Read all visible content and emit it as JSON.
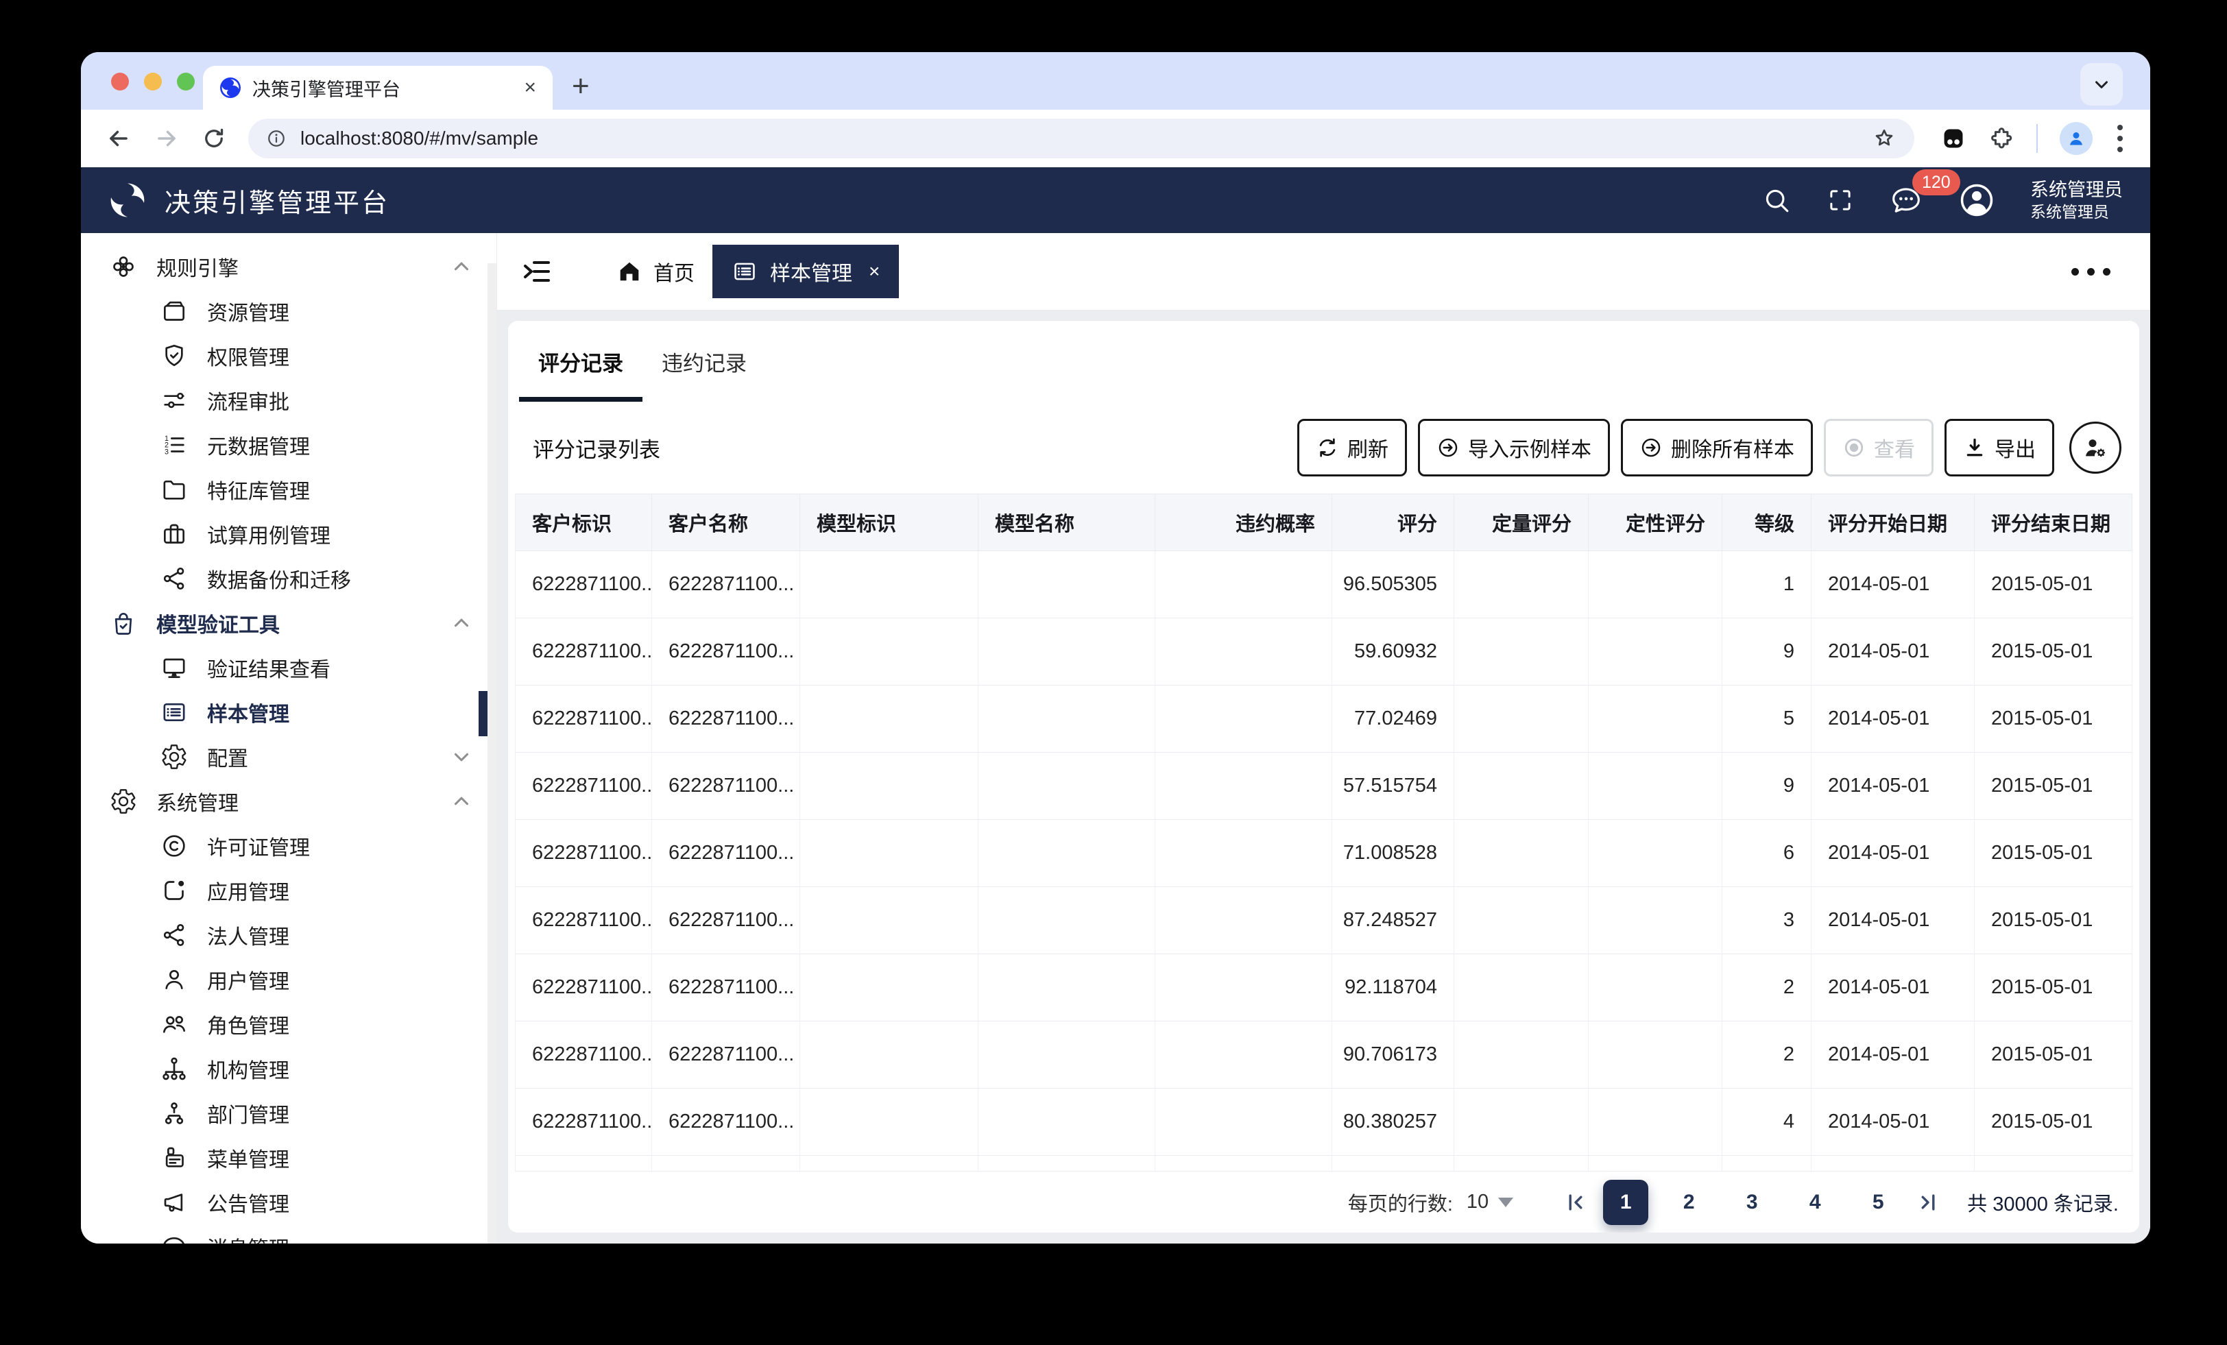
{
  "colors": {
    "navy": "#1e2b4d",
    "badge_red": "#e85a4f",
    "tabstrip_blue": "#d7e1fb",
    "content_gray": "#ecedf1",
    "table_header_bg": "#f5f6fa"
  },
  "browser": {
    "tab_title": "决策引擎管理平台",
    "url": "localhost:8080/#/mv/sample"
  },
  "appbar": {
    "title": "决策引擎管理平台",
    "badge_count": "120",
    "user_name": "系统管理员",
    "user_role": "系统管理员"
  },
  "sidebar": {
    "sections": [
      {
        "icon": "nodes-flower-icon",
        "label": "规则引擎",
        "chevron": "up",
        "active_section": false,
        "children": [
          {
            "icon": "wallet-icon",
            "label": "资源管理"
          },
          {
            "icon": "shield-check-icon",
            "label": "权限管理"
          },
          {
            "icon": "sliders-icon",
            "label": "流程审批"
          },
          {
            "icon": "list-ol-icon",
            "label": "元数据管理"
          },
          {
            "icon": "folder-icon",
            "label": "特征库管理"
          },
          {
            "icon": "briefcase-icon",
            "label": "试算用例管理"
          },
          {
            "icon": "share-nodes-icon",
            "label": "数据备份和迁移"
          }
        ]
      },
      {
        "icon": "bag-check-icon",
        "label": "模型验证工具",
        "chevron": "up",
        "active_section": true,
        "children": [
          {
            "icon": "monitor-icon",
            "label": "验证结果查看"
          },
          {
            "icon": "card-list-icon",
            "label": "样本管理",
            "active": true
          },
          {
            "icon": "gear-icon",
            "label": "配置",
            "chevron": "down"
          }
        ]
      },
      {
        "icon": "gear-icon",
        "label": "系统管理",
        "chevron": "up",
        "active_section": false,
        "children": [
          {
            "icon": "copyright-icon",
            "label": "许可证管理"
          },
          {
            "icon": "app-indicator-icon",
            "label": "应用管理"
          },
          {
            "icon": "share-nodes-icon",
            "label": "法人管理"
          },
          {
            "icon": "person-icon",
            "label": "用户管理"
          },
          {
            "icon": "people-icon",
            "label": "角色管理"
          },
          {
            "icon": "org-chart-icon",
            "label": "机构管理"
          },
          {
            "icon": "diagram-icon",
            "label": "部门管理"
          },
          {
            "icon": "menu-card-icon",
            "label": "菜单管理"
          },
          {
            "icon": "megaphone-icon",
            "label": "公告管理"
          },
          {
            "icon": "chat-dots-icon",
            "label": "消息管理"
          }
        ]
      }
    ]
  },
  "crumb": {
    "home": "首页",
    "page_tab": "样本管理",
    "close": "×"
  },
  "tabs": [
    {
      "label": "评分记录",
      "active": true
    },
    {
      "label": "违约记录",
      "active": false
    }
  ],
  "panel": {
    "list_title": "评分记录列表"
  },
  "toolbar": {
    "buttons": [
      {
        "icon": "refresh-icon",
        "label": "刷新",
        "disabled": false
      },
      {
        "icon": "arrow-right-circle-icon",
        "label": "导入示例样本",
        "disabled": false
      },
      {
        "icon": "arrow-right-circle-icon",
        "label": "删除所有样本",
        "disabled": false
      },
      {
        "icon": "bullseye-icon",
        "label": "查看",
        "disabled": true
      },
      {
        "icon": "download-icon",
        "label": "导出",
        "disabled": false
      }
    ]
  },
  "table": {
    "columns": [
      {
        "label": "客户标识",
        "align": "left"
      },
      {
        "label": "客户名称",
        "align": "left"
      },
      {
        "label": "模型标识",
        "align": "left"
      },
      {
        "label": "模型名称",
        "align": "left"
      },
      {
        "label": "违约概率",
        "align": "right"
      },
      {
        "label": "评分",
        "align": "right"
      },
      {
        "label": "定量评分",
        "align": "right"
      },
      {
        "label": "定性评分",
        "align": "right"
      },
      {
        "label": "等级",
        "align": "right"
      },
      {
        "label": "评分开始日期",
        "align": "left"
      },
      {
        "label": "评分结束日期",
        "align": "left"
      }
    ],
    "rows": [
      [
        "6222871100...",
        "6222871100...",
        "",
        "",
        "",
        "96.505305",
        "",
        "",
        "1",
        "2014-05-01",
        "2015-05-01"
      ],
      [
        "6222871100...",
        "6222871100...",
        "",
        "",
        "",
        "59.60932",
        "",
        "",
        "9",
        "2014-05-01",
        "2015-05-01"
      ],
      [
        "6222871100...",
        "6222871100...",
        "",
        "",
        "",
        "77.02469",
        "",
        "",
        "5",
        "2014-05-01",
        "2015-05-01"
      ],
      [
        "6222871100...",
        "6222871100...",
        "",
        "",
        "",
        "57.515754",
        "",
        "",
        "9",
        "2014-05-01",
        "2015-05-01"
      ],
      [
        "6222871100...",
        "6222871100...",
        "",
        "",
        "",
        "71.008528",
        "",
        "",
        "6",
        "2014-05-01",
        "2015-05-01"
      ],
      [
        "6222871100...",
        "6222871100...",
        "",
        "",
        "",
        "87.248527",
        "",
        "",
        "3",
        "2014-05-01",
        "2015-05-01"
      ],
      [
        "6222871100...",
        "6222871100...",
        "",
        "",
        "",
        "92.118704",
        "",
        "",
        "2",
        "2014-05-01",
        "2015-05-01"
      ],
      [
        "6222871100...",
        "6222871100...",
        "",
        "",
        "",
        "90.706173",
        "",
        "",
        "2",
        "2014-05-01",
        "2015-05-01"
      ],
      [
        "6222871100...",
        "6222871100...",
        "",
        "",
        "",
        "80.380257",
        "",
        "",
        "4",
        "2014-05-01",
        "2015-05-01"
      ]
    ]
  },
  "pagination": {
    "rows_per_page_label": "每页的行数:",
    "rows_per_page": "10",
    "pages": [
      "1",
      "2",
      "3",
      "4",
      "5"
    ],
    "active_page": "1",
    "total": "共 30000 条记录."
  }
}
